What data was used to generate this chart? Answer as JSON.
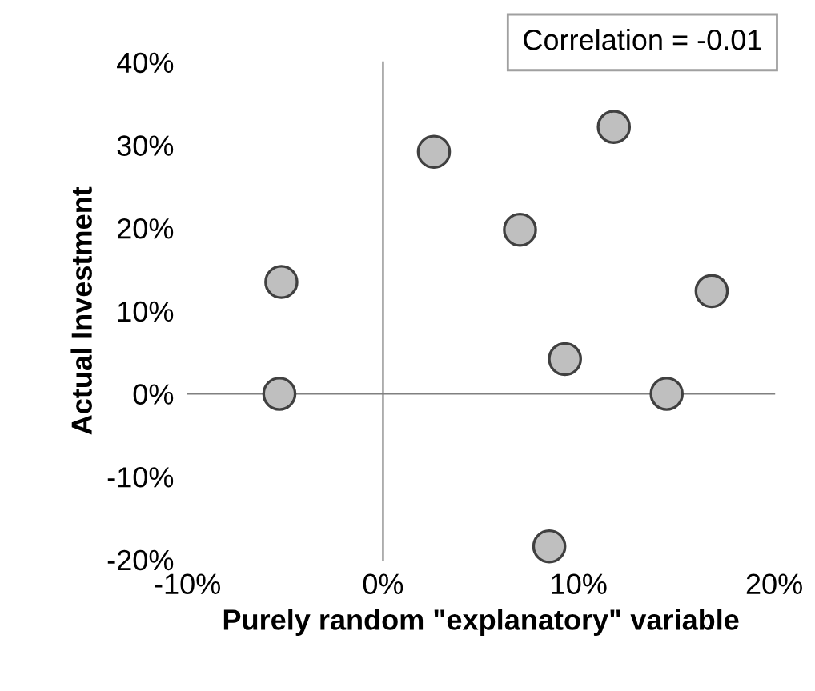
{
  "chart_data": {
    "type": "scatter",
    "xlabel": "Purely random \"explanatory\" variable",
    "ylabel": "Actual Investment",
    "annotations": [
      "Correlation = -0.01"
    ],
    "x": [
      -5.3,
      -5.2,
      2.6,
      7.0,
      11.8,
      9.3,
      16.8,
      14.5,
      8.5
    ],
    "series": [
      {
        "color": "#bfbfbf",
        "values": [
          0,
          13.5,
          29.2,
          19.8,
          32.2,
          4.2,
          12.4,
          0,
          -18.4
        ]
      }
    ],
    "xlim": [
      -10,
      20
    ],
    "ylim": [
      -20,
      40
    ],
    "xticks": [
      {
        "value": -10,
        "label": "-10%"
      },
      {
        "value": 0,
        "label": "0%"
      },
      {
        "value": 10,
        "label": "10%"
      },
      {
        "value": 20,
        "label": "20%"
      }
    ],
    "yticks": [
      {
        "value": -20,
        "label": "-20%"
      },
      {
        "value": -10,
        "label": "-10%"
      },
      {
        "value": 0,
        "label": "0%"
      },
      {
        "value": 10,
        "label": "10%"
      },
      {
        "value": 20,
        "label": "20%"
      },
      {
        "value": 30,
        "label": "30%"
      },
      {
        "value": 40,
        "label": "40%"
      }
    ],
    "marker": "circle",
    "legend": false
  }
}
